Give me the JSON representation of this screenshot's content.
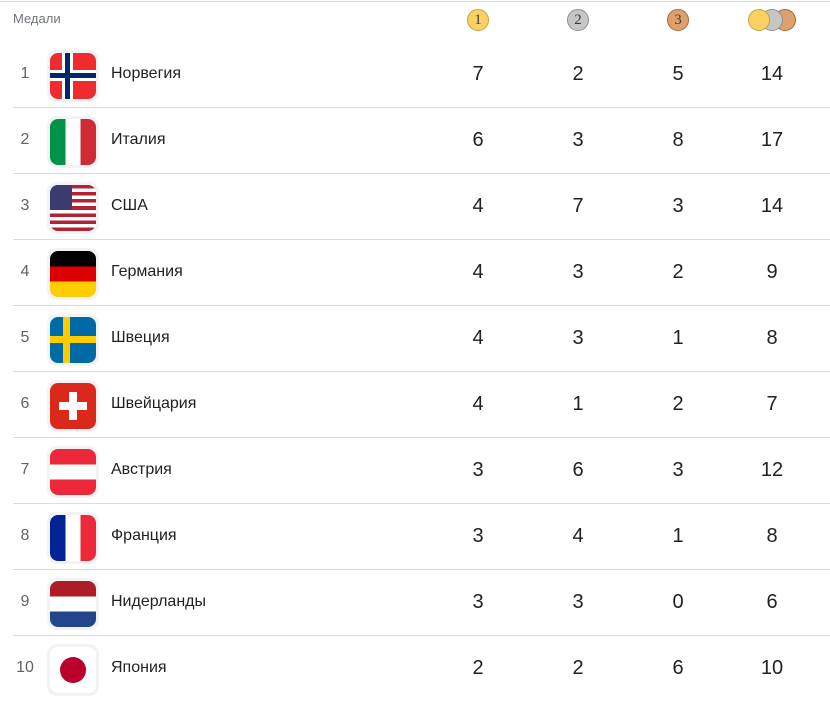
{
  "header": {
    "label": "Медали",
    "gold": "1",
    "silver": "2",
    "bronze": "3",
    "total_icon": "medals-stack-icon"
  },
  "colors": {
    "gold": "#fdd065",
    "silver": "#c6c6c6",
    "bronze": "#e0a06b"
  },
  "rows": [
    {
      "rank": "1",
      "country": "Норвегия",
      "flag": "norway",
      "gold": "7",
      "silver": "2",
      "bronze": "5",
      "total": "14"
    },
    {
      "rank": "2",
      "country": "Италия",
      "flag": "italy",
      "gold": "6",
      "silver": "3",
      "bronze": "8",
      "total": "17"
    },
    {
      "rank": "3",
      "country": "США",
      "flag": "usa",
      "gold": "4",
      "silver": "7",
      "bronze": "3",
      "total": "14"
    },
    {
      "rank": "4",
      "country": "Германия",
      "flag": "germany",
      "gold": "4",
      "silver": "3",
      "bronze": "2",
      "total": "9"
    },
    {
      "rank": "5",
      "country": "Швеция",
      "flag": "sweden",
      "gold": "4",
      "silver": "3",
      "bronze": "1",
      "total": "8"
    },
    {
      "rank": "6",
      "country": "Швейцария",
      "flag": "switzerland",
      "gold": "4",
      "silver": "1",
      "bronze": "2",
      "total": "7"
    },
    {
      "rank": "7",
      "country": "Австрия",
      "flag": "austria",
      "gold": "3",
      "silver": "6",
      "bronze": "3",
      "total": "12"
    },
    {
      "rank": "8",
      "country": "Франция",
      "flag": "france",
      "gold": "3",
      "silver": "4",
      "bronze": "1",
      "total": "8"
    },
    {
      "rank": "9",
      "country": "Нидерланды",
      "flag": "netherlands",
      "gold": "3",
      "silver": "3",
      "bronze": "0",
      "total": "6"
    },
    {
      "rank": "10",
      "country": "Япония",
      "flag": "japan",
      "gold": "2",
      "silver": "2",
      "bronze": "6",
      "total": "10"
    }
  ]
}
